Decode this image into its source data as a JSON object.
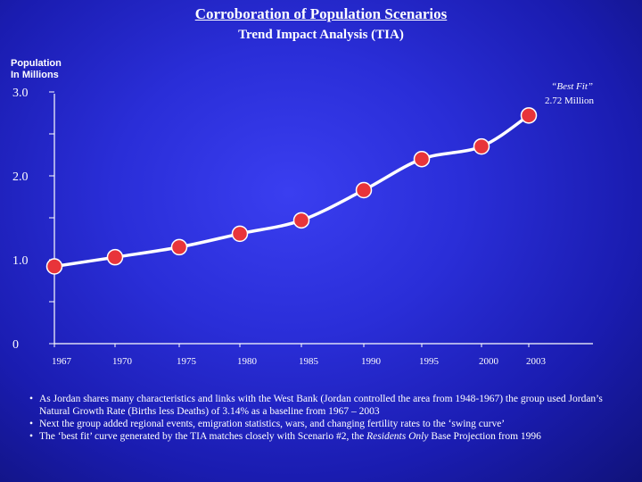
{
  "header": {
    "title": "Corroboration of Population Scenarios",
    "subtitle": "Trend Impact Analysis (TIA)"
  },
  "chart_data": {
    "type": "line",
    "title": "",
    "ylabel": "Population In Millions",
    "ylabel_lines": [
      "Population",
      "In Millions"
    ],
    "xlabel": "",
    "x": [
      1967,
      1970,
      1975,
      1980,
      1985,
      1990,
      1995,
      2000,
      2003
    ],
    "x_tick_labels": [
      "1967",
      "1970",
      "1975",
      "1980",
      "1985",
      "1990",
      "1995",
      "2000",
      "2003"
    ],
    "y_tick_labels": [
      "0",
      "1.0",
      "2.0",
      "3.0"
    ],
    "y_ticks": [
      0,
      1,
      2,
      3
    ],
    "ylim": [
      0,
      3
    ],
    "series": [
      {
        "values": [
          0.92,
          1.03,
          1.15,
          1.31,
          1.47,
          1.83,
          2.2,
          2.35,
          2.72
        ]
      }
    ],
    "annotation": {
      "line1": "“Best Fit”",
      "line2": "2.72 Million"
    },
    "colors": {
      "line": "#ffffff",
      "marker": "#e8343a",
      "marker_edge": "#ffffff",
      "axis": "#ffffff"
    },
    "grid": false
  },
  "notes": [
    {
      "parts": [
        {
          "text": "As Jordan shares many characteristics and links with the West Bank (Jordan controlled the area from 1948-1967) the group used Jordan’s Natural Growth Rate (Births less Deaths) of 3.14% as a baseline from 1967 – 2003",
          "italic": false
        }
      ]
    },
    {
      "parts": [
        {
          "text": "Next the group added regional events, emigration statistics, wars, and changing fertility rates to the ‘swing curve’",
          "italic": false
        }
      ]
    },
    {
      "parts": [
        {
          "text": "The ‘best fit’ curve generated by the TIA matches closely with Scenario #2, the ",
          "italic": false
        },
        {
          "text": "Residents Only",
          "italic": true
        },
        {
          "text": " Base Projection from 1996",
          "italic": false
        }
      ]
    }
  ]
}
